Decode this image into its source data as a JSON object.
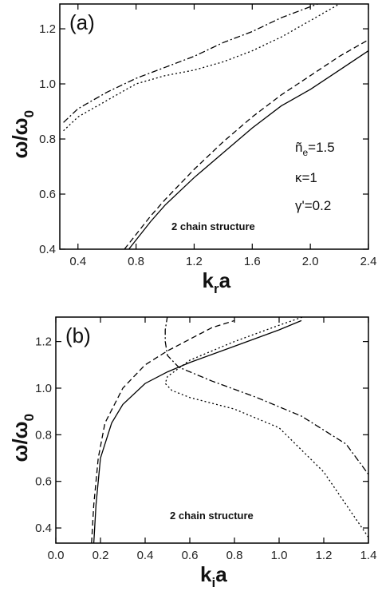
{
  "chart_data": [
    {
      "type": "line",
      "label": "(a)",
      "x_label": [
        "k",
        "r",
        "a"
      ],
      "y_label": [
        "ω/ω",
        "0"
      ],
      "annotations": [
        [
          "ñ",
          "e",
          "=1.5"
        ],
        [
          "κ=1"
        ],
        [
          "γ'=0.2"
        ],
        [
          "2 chain structure"
        ]
      ],
      "xlim": [
        0.275,
        2.4
      ],
      "ylim": [
        0.4,
        1.29
      ],
      "xticks": [
        0.4,
        0.8,
        1.2,
        1.6,
        {
          "value": 2,
          "label": "2.0"
        },
        2.4
      ],
      "yticks": [
        0.4,
        0.6,
        0.8,
        {
          "value": 1,
          "label": "1.0"
        },
        1.2
      ],
      "series": [
        {
          "style": "solid",
          "color": "#000",
          "x": [
            0.75,
            0.9,
            1.0,
            1.2,
            1.4,
            1.6,
            1.8,
            2.0,
            2.2,
            2.4
          ],
          "values": [
            0.4,
            0.5,
            0.56,
            0.66,
            0.75,
            0.84,
            0.92,
            0.98,
            1.05,
            1.12
          ]
        },
        {
          "style": "dashed",
          "color": "#000",
          "x": [
            0.72,
            0.9,
            1.0,
            1.2,
            1.4,
            1.6,
            1.8,
            2.0,
            2.2,
            2.4
          ],
          "values": [
            0.4,
            0.52,
            0.58,
            0.69,
            0.79,
            0.88,
            0.96,
            1.03,
            1.1,
            1.16
          ]
        },
        {
          "style": "dotted",
          "color": "#000",
          "x": [
            0.3,
            0.4,
            0.6,
            0.8,
            1.0,
            1.2,
            1.4,
            1.6,
            1.8,
            2.0,
            2.2
          ],
          "values": [
            0.83,
            0.88,
            0.94,
            1.0,
            1.03,
            1.05,
            1.08,
            1.12,
            1.17,
            1.23,
            1.29
          ]
        },
        {
          "style": "dashdot",
          "color": "#000",
          "x": [
            0.3,
            0.4,
            0.6,
            0.8,
            1.0,
            1.2,
            1.4,
            1.6,
            1.8,
            2.0,
            2.1
          ],
          "values": [
            0.86,
            0.91,
            0.97,
            1.02,
            1.06,
            1.1,
            1.15,
            1.19,
            1.24,
            1.28,
            1.3
          ]
        }
      ]
    },
    {
      "type": "line",
      "label": "(b)",
      "x_label": [
        "k",
        "i",
        "a"
      ],
      "y_label": [
        "ω/ω",
        "0"
      ],
      "annotations": [
        [
          "2 chain structure"
        ]
      ],
      "xlim": [
        0,
        1.4
      ],
      "ylim": [
        0.335,
        1.305
      ],
      "xticks": [
        {
          "value": 0,
          "label": "0.0"
        },
        0.2,
        0.4,
        0.6,
        0.8,
        {
          "value": 1,
          "label": "1.0"
        },
        1.2,
        1.4
      ],
      "yticks": [
        0.4,
        0.6,
        0.8,
        {
          "value": 1,
          "label": "1.0"
        },
        1.2
      ],
      "series": [
        {
          "style": "solid",
          "color": "#000",
          "x": [
            0.17,
            0.18,
            0.2,
            0.25,
            0.3,
            0.4,
            0.5,
            0.6,
            0.8,
            1.0,
            1.1
          ],
          "values": [
            0.335,
            0.5,
            0.7,
            0.85,
            0.93,
            1.02,
            1.07,
            1.11,
            1.18,
            1.25,
            1.29
          ]
        },
        {
          "style": "dashed",
          "color": "#000",
          "x": [
            0.16,
            0.17,
            0.19,
            0.22,
            0.3,
            0.4,
            0.5,
            0.6,
            0.7,
            0.8
          ],
          "values": [
            0.335,
            0.5,
            0.7,
            0.85,
            1.0,
            1.1,
            1.16,
            1.21,
            1.26,
            1.29
          ]
        },
        {
          "style": "dashdot",
          "color": "#000",
          "x": [
            0.5,
            0.49,
            0.49,
            0.5,
            0.55,
            0.7,
            0.9,
            1.1,
            1.3,
            1.4
          ],
          "values": [
            1.31,
            1.25,
            1.2,
            1.14,
            1.09,
            1.03,
            0.96,
            0.88,
            0.76,
            0.63
          ]
        },
        {
          "style": "dotted",
          "color": "#000",
          "x": [
            1.12,
            1.0,
            0.8,
            0.6,
            0.5,
            0.49,
            0.52,
            0.6,
            0.8,
            1.0,
            1.2,
            1.4
          ],
          "values": [
            1.31,
            1.27,
            1.2,
            1.12,
            1.05,
            1.02,
            0.99,
            0.96,
            0.91,
            0.83,
            0.64,
            0.36
          ]
        }
      ]
    }
  ]
}
